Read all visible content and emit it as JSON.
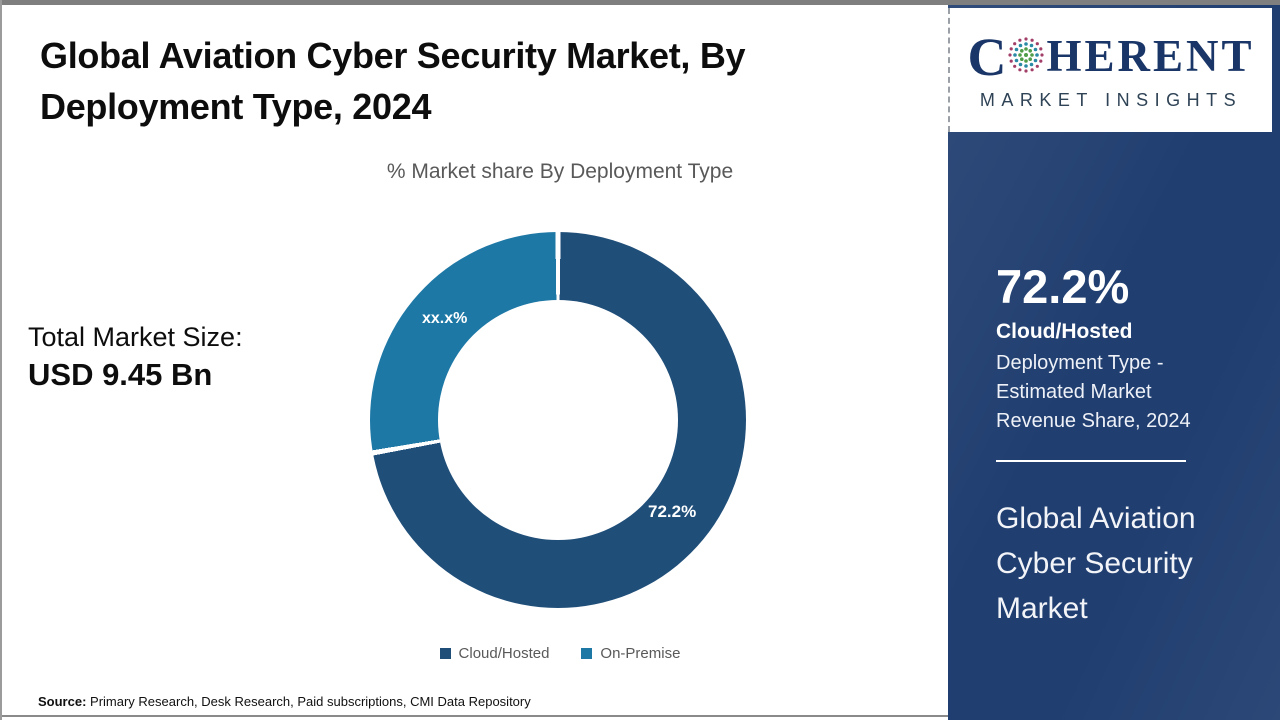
{
  "header": {
    "title": "Global Aviation Cyber Security Market, By\nDeployment Type, 2024"
  },
  "chart_data": {
    "type": "pie",
    "donut": true,
    "title": "% Market share By Deployment Type",
    "categories": [
      "Cloud/Hosted",
      "On-Premise"
    ],
    "values": [
      72.2,
      27.8
    ],
    "value_labels": [
      "72.2%",
      "xx.x%"
    ],
    "colors": [
      "#1F4E79",
      "#1E78A6"
    ],
    "legend_position": "bottom",
    "start_angle_deg": 0,
    "slice_gap_color": "#ffffff"
  },
  "stats": {
    "total_label": "Total Market Size:",
    "total_value": "USD 9.45 Bn"
  },
  "source": {
    "prefix": "Source:",
    "text": "Primary Research, Desk Research, Paid subscriptions, CMI Data Repository"
  },
  "sidebar": {
    "logo": {
      "first_letter": "C",
      "rest": "HERENT",
      "subtitle": "MARKET INSIGHTS",
      "globe_icon_colors": {
        "rim": "#A23F68",
        "mid": "#2A8AA5",
        "core": "#4F9D49"
      }
    },
    "highlight": {
      "value": "72.2%",
      "segment": "Cloud/Hosted",
      "description": "Deployment Type -\nEstimated Market\nRevenue Share, 2024"
    },
    "market_name": "Global Aviation\nCyber Security\nMarket",
    "panel_color": "#203E70"
  }
}
